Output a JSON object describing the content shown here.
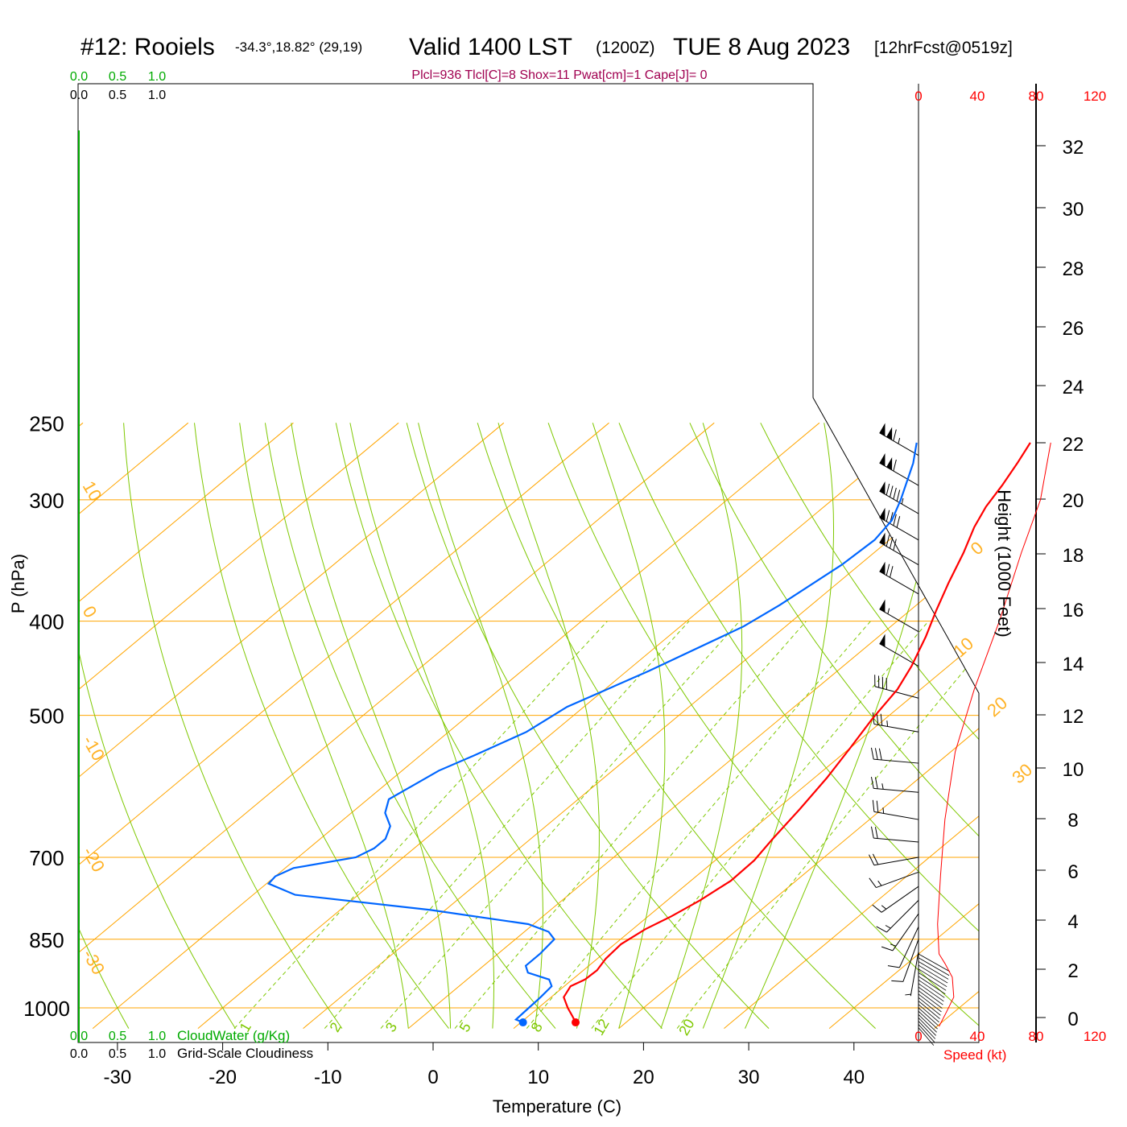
{
  "header": {
    "station": "#12: Rooiels",
    "coords": "-34.3°,18.82° (29,19)",
    "valid": "Valid 1400 LST",
    "utc": "(1200Z)",
    "date": "TUE 8 Aug 2023",
    "forecast": "[12hrFcst@0519z]",
    "indices": "Plcl=936 Tlcl[C]=8 Shox=11 Pwat[cm]=1 Cape[J]= 0"
  },
  "colors": {
    "temperature": "#ff0000",
    "dewpoint": "#0066ff",
    "isotherm": "#ffa500",
    "adiabat": "#7ec800",
    "mixing": "#7ec800",
    "cloud": "#00aa00",
    "speed_axis": "#ff0000"
  },
  "legends": {
    "cloud_ticks": [
      "0.0",
      "0.5",
      "1.0"
    ],
    "cloudwater_label": "CloudWater (g/Kg)",
    "cloudiness_label": "Grid-Scale Cloudiness"
  },
  "speed_axis": {
    "ticks": [
      "0",
      "40",
      "80",
      "120"
    ],
    "label": "Speed (kt)"
  },
  "chart_data": {
    "type": "line",
    "diagram": "skew-T log-P",
    "xlabel": "Temperature (C)",
    "ylabel": "P (hPa)",
    "y2label": "Height (1000 Feet)",
    "xlim": [
      -34,
      36
    ],
    "ylim": [
      1050,
      250
    ],
    "x_ticks": [
      -30,
      -20,
      -10,
      0,
      10,
      20,
      30,
      40
    ],
    "p_ticks": [
      1000,
      850,
      700,
      500,
      400,
      300,
      250
    ],
    "height_ticks": [
      0,
      2,
      4,
      6,
      8,
      10,
      12,
      14,
      16,
      18,
      20,
      22,
      24,
      26,
      28,
      30,
      32
    ],
    "isotherm_labels": [
      {
        "value": "10",
        "p": 290
      },
      {
        "value": "0",
        "p": 390
      },
      {
        "value": "-10",
        "p": 530
      },
      {
        "value": "-20",
        "p": 690
      },
      {
        "value": "-30",
        "p": 880
      },
      {
        "value": "0",
        "p": 340
      },
      {
        "value": "10",
        "p": 430
      },
      {
        "value": "20",
        "p": 495
      },
      {
        "value": "30",
        "p": 580
      }
    ],
    "mixing_labels": [
      "1",
      "2",
      "3",
      "5",
      "8",
      "12",
      "20"
    ],
    "series": [
      {
        "name": "Temperature",
        "points": [
          [
            15.2,
            1035
          ],
          [
            14.2,
            1020
          ],
          [
            12.8,
            1000
          ],
          [
            11.2,
            975
          ],
          [
            10.6,
            950
          ],
          [
            11.2,
            935
          ],
          [
            11.3,
            915
          ],
          [
            10.8,
            890
          ],
          [
            10.6,
            860
          ],
          [
            11.2,
            830
          ],
          [
            12.2,
            805
          ],
          [
            13.1,
            775
          ],
          [
            13.8,
            740
          ],
          [
            13.7,
            705
          ],
          [
            13.0,
            670
          ],
          [
            12.2,
            625
          ],
          [
            11.2,
            580
          ],
          [
            10.0,
            540
          ],
          [
            8.8,
            505
          ],
          [
            7.8,
            470
          ],
          [
            6.5,
            445
          ],
          [
            4.5,
            415
          ],
          [
            2.5,
            390
          ],
          [
            0.5,
            365
          ],
          [
            -1.5,
            340
          ],
          [
            -3.4,
            320
          ],
          [
            -4.6,
            305
          ],
          [
            -5.5,
            290
          ],
          [
            -6.6,
            275
          ],
          [
            -7.7,
            262
          ]
        ]
      },
      {
        "name": "Dewpoint",
        "points": [
          [
            10.2,
            1035
          ],
          [
            9.2,
            1028
          ],
          [
            9.1,
            1000
          ],
          [
            9.0,
            975
          ],
          [
            8.8,
            950
          ],
          [
            7.8,
            935
          ],
          [
            5.0,
            920
          ],
          [
            4.0,
            905
          ],
          [
            4.0,
            880
          ],
          [
            3.7,
            850
          ],
          [
            2.3,
            835
          ],
          [
            -0.5,
            820
          ],
          [
            -11.4,
            793
          ],
          [
            -26.0,
            765
          ],
          [
            -29.8,
            745
          ],
          [
            -30.0,
            732
          ],
          [
            -29.2,
            718
          ],
          [
            -24.5,
            700
          ],
          [
            -23.8,
            685
          ],
          [
            -23.8,
            670
          ],
          [
            -24.8,
            650
          ],
          [
            -26.8,
            630
          ],
          [
            -28.0,
            610
          ],
          [
            -26.5,
            570
          ],
          [
            -24.9,
            550
          ],
          [
            -22.6,
            520
          ],
          [
            -21.6,
            490
          ],
          [
            -17.9,
            450
          ],
          [
            -14.0,
            405
          ],
          [
            -13.0,
            385
          ],
          [
            -11.7,
            350
          ],
          [
            -11.4,
            330
          ],
          [
            -12.0,
            315
          ],
          [
            -13.5,
            300
          ],
          [
            -16.5,
            275
          ],
          [
            -18.5,
            262
          ]
        ]
      }
    ],
    "winds": [
      {
        "p": 270,
        "speed": 115,
        "dir": 300
      },
      {
        "p": 290,
        "speed": 110,
        "dir": 300
      },
      {
        "p": 310,
        "speed": 95,
        "dir": 300
      },
      {
        "p": 330,
        "speed": 90,
        "dir": 300
      },
      {
        "p": 350,
        "speed": 80,
        "dir": 300
      },
      {
        "p": 375,
        "speed": 70,
        "dir": 300
      },
      {
        "p": 410,
        "speed": 55,
        "dir": 300
      },
      {
        "p": 445,
        "speed": 50,
        "dir": 300
      },
      {
        "p": 480,
        "speed": 40,
        "dir": 285
      },
      {
        "p": 520,
        "speed": 35,
        "dir": 280
      },
      {
        "p": 560,
        "speed": 30,
        "dir": 275
      },
      {
        "p": 600,
        "speed": 25,
        "dir": 275
      },
      {
        "p": 640,
        "speed": 25,
        "dir": 280
      },
      {
        "p": 675,
        "speed": 20,
        "dir": 275
      },
      {
        "p": 700,
        "speed": 20,
        "dir": 260
      },
      {
        "p": 725,
        "speed": 15,
        "dir": 250
      },
      {
        "p": 750,
        "speed": 15,
        "dir": 235
      },
      {
        "p": 775,
        "speed": 15,
        "dir": 225
      },
      {
        "p": 800,
        "speed": 15,
        "dir": 215
      },
      {
        "p": 825,
        "speed": 10,
        "dir": 205
      },
      {
        "p": 850,
        "speed": 10,
        "dir": 200
      },
      {
        "p": 875,
        "speed": 5,
        "dir": 190
      }
    ],
    "speed_profile": [
      [
        14,
        1045
      ],
      [
        19,
        1010
      ],
      [
        24,
        975
      ],
      [
        23,
        930
      ],
      [
        18,
        900
      ],
      [
        14,
        880
      ],
      [
        13,
        820
      ],
      [
        15,
        730
      ],
      [
        18,
        640
      ],
      [
        25,
        545
      ],
      [
        38,
        470
      ],
      [
        55,
        400
      ],
      [
        70,
        340
      ],
      [
        83,
        300
      ],
      [
        90,
        262
      ]
    ]
  }
}
